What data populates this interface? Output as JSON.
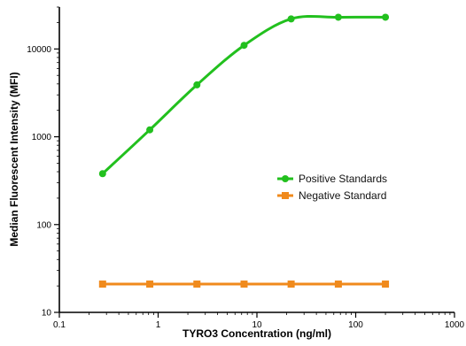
{
  "chart_data": {
    "type": "line",
    "title": "",
    "xlabel": "TYRO3 Concentration (ng/ml)",
    "ylabel": "Median Fluorescent Intensity (MFI)",
    "x_scale": "log",
    "y_scale": "log",
    "xlim": [
      0.1,
      1000
    ],
    "ylim": [
      10,
      30000
    ],
    "x_ticks": [
      0.1,
      1,
      10,
      100,
      1000
    ],
    "x_tick_labels": [
      "0.1",
      "1",
      "10",
      "100",
      "1000"
    ],
    "y_ticks": [
      10,
      100,
      1000,
      10000
    ],
    "y_tick_labels": [
      "10",
      "100",
      "1000",
      "10000"
    ],
    "grid": false,
    "legend_position": "center-right",
    "series": [
      {
        "name": "Positive Standards",
        "color": "#22c01e",
        "marker": "circle",
        "x": [
          0.274,
          0.823,
          2.47,
          7.41,
          22.2,
          66.7,
          200
        ],
        "y": [
          380,
          1200,
          3900,
          11000,
          22000,
          23000,
          23000
        ]
      },
      {
        "name": "Negative Standard",
        "color": "#f08a1c",
        "marker": "square",
        "x": [
          0.274,
          0.823,
          2.47,
          7.41,
          22.2,
          66.7,
          200
        ],
        "y": [
          21,
          21,
          21,
          21,
          21,
          21,
          21
        ]
      }
    ]
  }
}
